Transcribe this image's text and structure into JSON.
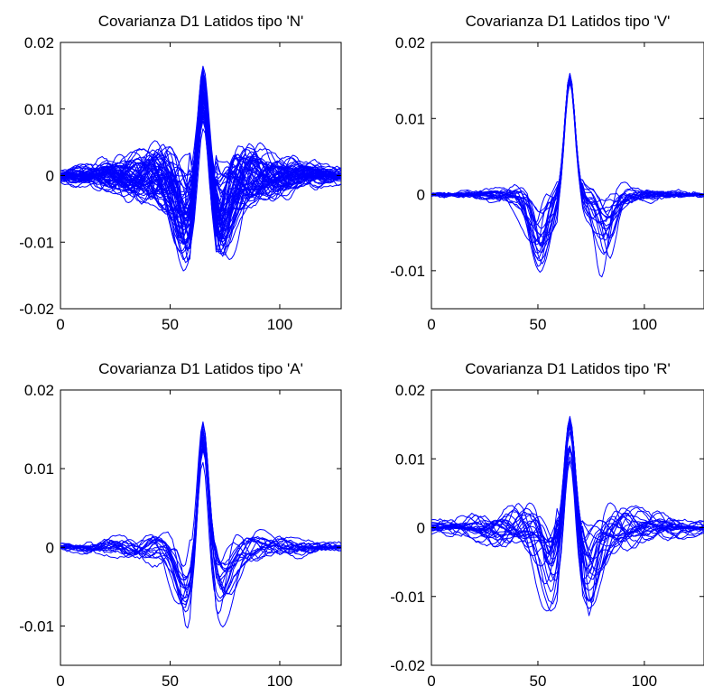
{
  "chart_data": [
    {
      "type": "line",
      "title": "Covarianza D1 Latidos tipo 'N'",
      "xlim": [
        0,
        128
      ],
      "ylim": [
        -0.02,
        0.02
      ],
      "xticks": [
        0,
        50,
        100
      ],
      "xtick_labels": [
        "0",
        "50",
        "100"
      ],
      "yticks": [
        -0.02,
        -0.01,
        0,
        0.01,
        0.02
      ],
      "ytick_labels": [
        "-0.02",
        "-0.01",
        "0",
        "0.01",
        "0.02"
      ],
      "grid": false,
      "series_color": "#0000ff",
      "peak": {
        "x": 65,
        "y": 0.0157
      },
      "trough_left": {
        "x": 59,
        "y": -0.0112
      },
      "trough_right": {
        "x": 71,
        "y": -0.0112
      },
      "side_lobe_amplitude": 0.0055,
      "n_series": 60
    },
    {
      "type": "line",
      "title": "Covarianza D1 Latidos tipo 'V'",
      "xlim": [
        0,
        128
      ],
      "ylim": [
        -0.015,
        0.02
      ],
      "xticks": [
        0,
        50,
        100
      ],
      "xtick_labels": [
        "0",
        "50",
        "100"
      ],
      "yticks": [
        -0.01,
        0,
        0.01,
        0.02
      ],
      "ytick_labels": [
        "-0.01",
        "0",
        "0.01",
        "0.02"
      ],
      "grid": false,
      "series_color": "#0000ff",
      "peak": {
        "x": 65,
        "y": 0.0155
      },
      "trough_left": {
        "x": 52,
        "y": -0.0095
      },
      "trough_right": {
        "x": 80,
        "y": -0.0095
      },
      "side_lobe_amplitude": 0.002,
      "n_series": 20
    },
    {
      "type": "line",
      "title": "Covarianza D1 Latidos tipo 'A'",
      "xlim": [
        0,
        128
      ],
      "ylim": [
        -0.015,
        0.02
      ],
      "xticks": [
        0,
        50,
        100
      ],
      "xtick_labels": [
        "0",
        "50",
        "100"
      ],
      "yticks": [
        -0.01,
        0,
        0.01,
        0.02
      ],
      "ytick_labels": [
        "-0.01",
        "0",
        "0.01",
        "0.02"
      ],
      "grid": false,
      "series_color": "#0000ff",
      "peak": {
        "x": 65,
        "y": 0.0157
      },
      "trough_left": {
        "x": 59,
        "y": -0.009
      },
      "trough_right": {
        "x": 71,
        "y": -0.009
      },
      "side_lobe_amplitude": 0.0025,
      "n_series": 18
    },
    {
      "type": "line",
      "title": "Covarianza D1 Latidos tipo 'R'",
      "xlim": [
        0,
        128
      ],
      "ylim": [
        -0.02,
        0.02
      ],
      "xticks": [
        0,
        50,
        100
      ],
      "xtick_labels": [
        "0",
        "50",
        "100"
      ],
      "yticks": [
        -0.02,
        -0.01,
        0,
        0.01,
        0.02
      ],
      "ytick_labels": [
        "-0.02",
        "-0.01",
        "0",
        "0.01",
        "0.02"
      ],
      "grid": false,
      "series_color": "#0000ff",
      "peak": {
        "x": 65,
        "y": 0.0155
      },
      "trough_left": {
        "x": 58,
        "y": -0.0105
      },
      "trough_right": {
        "x": 72,
        "y": -0.0105
      },
      "side_lobe_amplitude": 0.0045,
      "n_series": 25
    }
  ]
}
